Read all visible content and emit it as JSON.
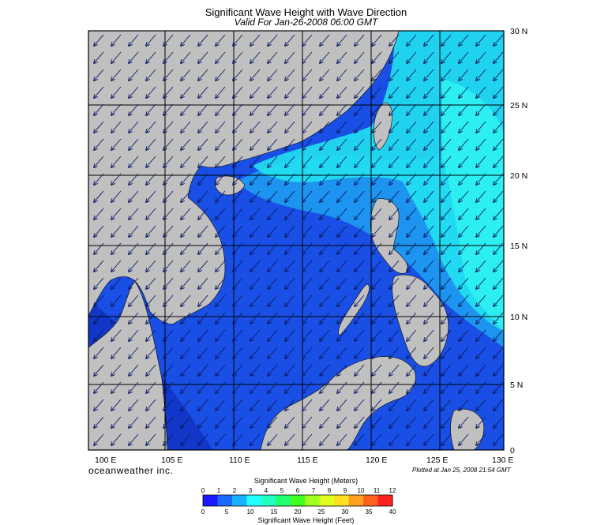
{
  "title": "Significant Wave Height with Wave Direction",
  "subtitle": "Valid For Jan-26-2008 06:00 GMT",
  "brand": "oceanweather inc.",
  "plotted_note": "Plotted at Jan 25, 2008 21:54 GMT",
  "lon_labels": [
    "100 E",
    "105 E",
    "110 E",
    "115 E",
    "120 E",
    "125 E",
    "130 E"
  ],
  "lat_labels": [
    "30 N",
    "25 N",
    "20 N",
    "15 N",
    "10 N",
    "5 N",
    "0"
  ],
  "colors": {
    "land": "#c0c0c0",
    "sea_low": "#1a4fe6",
    "sea_mid": "#1fa0f0",
    "sea_high": "#22f0f0",
    "arrow": "#0a1a60"
  },
  "scale": {
    "meters_title": "Significant Wave Height (Meters)",
    "feet_title": "Significant Wave Height (Feet)",
    "meters_ticks": [
      "0",
      "1",
      "2",
      "3",
      "4",
      "5",
      "6",
      "7",
      "8",
      "9",
      "10",
      "11",
      "12"
    ],
    "feet_ticks": [
      "0",
      "5",
      "10",
      "15",
      "20",
      "25",
      "30",
      "35",
      "40"
    ],
    "colors": [
      "#1a1aff",
      "#1a6aff",
      "#1ab0ff",
      "#22ffff",
      "#22ffc0",
      "#22ff70",
      "#40ff20",
      "#a0ff20",
      "#e0ff20",
      "#ffe020",
      "#ffa020",
      "#ff6020",
      "#ff2020"
    ]
  }
}
